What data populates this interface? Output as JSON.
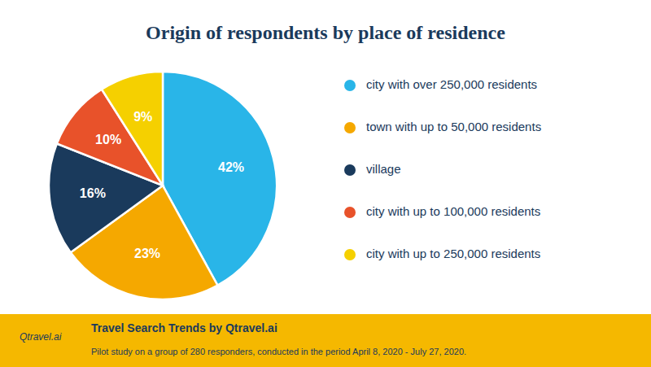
{
  "chart_data": {
    "type": "pie",
    "title": "Origin of respondents by place of residence",
    "categories": [
      "city with over 250,000 residents",
      "town with up to 50,000 residents",
      "village",
      "city with up to 100,000 residents",
      "city with up to 250,000 residents"
    ],
    "values": [
      42,
      23,
      16,
      10,
      9
    ],
    "value_labels": [
      "42%",
      "23%",
      "16%",
      "10%",
      "9%"
    ],
    "colors": [
      "#29b5e8",
      "#f5a800",
      "#1a3a5c",
      "#e8522a",
      "#f5d000"
    ],
    "data_labels": true,
    "annotations": [
      "Qtravel.ai",
      "Travel Search Trends by Qtravel.ai",
      "Pilot study on a group of 280 responders, conducted in the period April 8, 2020 - July 27, 2020."
    ]
  }
}
